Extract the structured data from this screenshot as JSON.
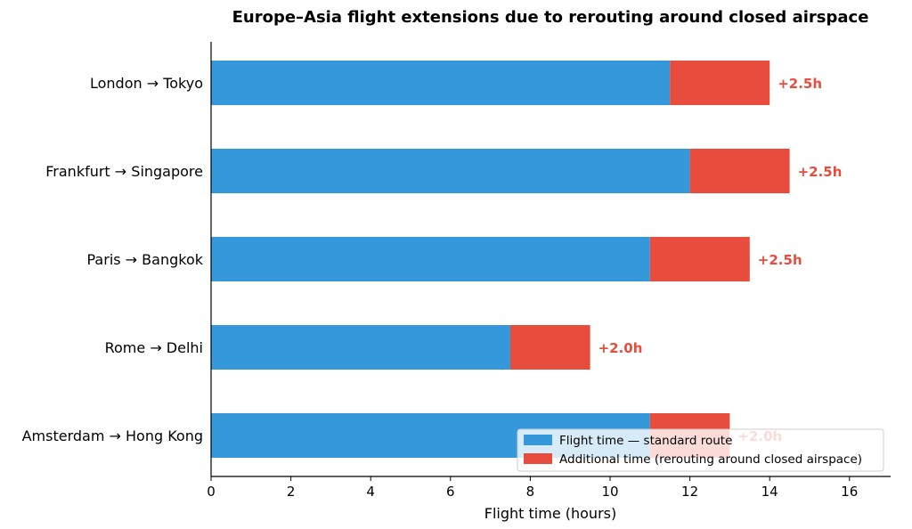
{
  "chart_data": {
    "type": "bar",
    "orientation": "horizontal",
    "stacked": true,
    "title": "Europe–Asia flight extensions due to rerouting around closed airspace",
    "xlabel": "Flight time (hours)",
    "ylabel": "",
    "xlim": [
      0,
      17
    ],
    "xticks": [
      "0",
      "2",
      "4",
      "6",
      "8",
      "10",
      "12",
      "14",
      "16"
    ],
    "grid": false,
    "legend_position": "lower-right",
    "categories": [
      "London → Tokyo",
      "Frankfurt → Singapore",
      "Paris → Bangkok",
      "Rome → Delhi",
      "Amsterdam → Hong Kong"
    ],
    "series": [
      {
        "name": "Flight time — standard route",
        "color": "#3498db",
        "values": [
          11.5,
          12.0,
          11.0,
          7.5,
          11.0
        ]
      },
      {
        "name": "Additional time (rerouting around closed airspace)",
        "color": "#e74c3c",
        "values": [
          2.5,
          2.5,
          2.5,
          2.0,
          2.0
        ]
      }
    ],
    "data_labels": [
      "+2.5h",
      "+2.5h",
      "+2.5h",
      "+2.0h",
      "+2.0h"
    ],
    "data_label_color": "#e74c3c"
  }
}
